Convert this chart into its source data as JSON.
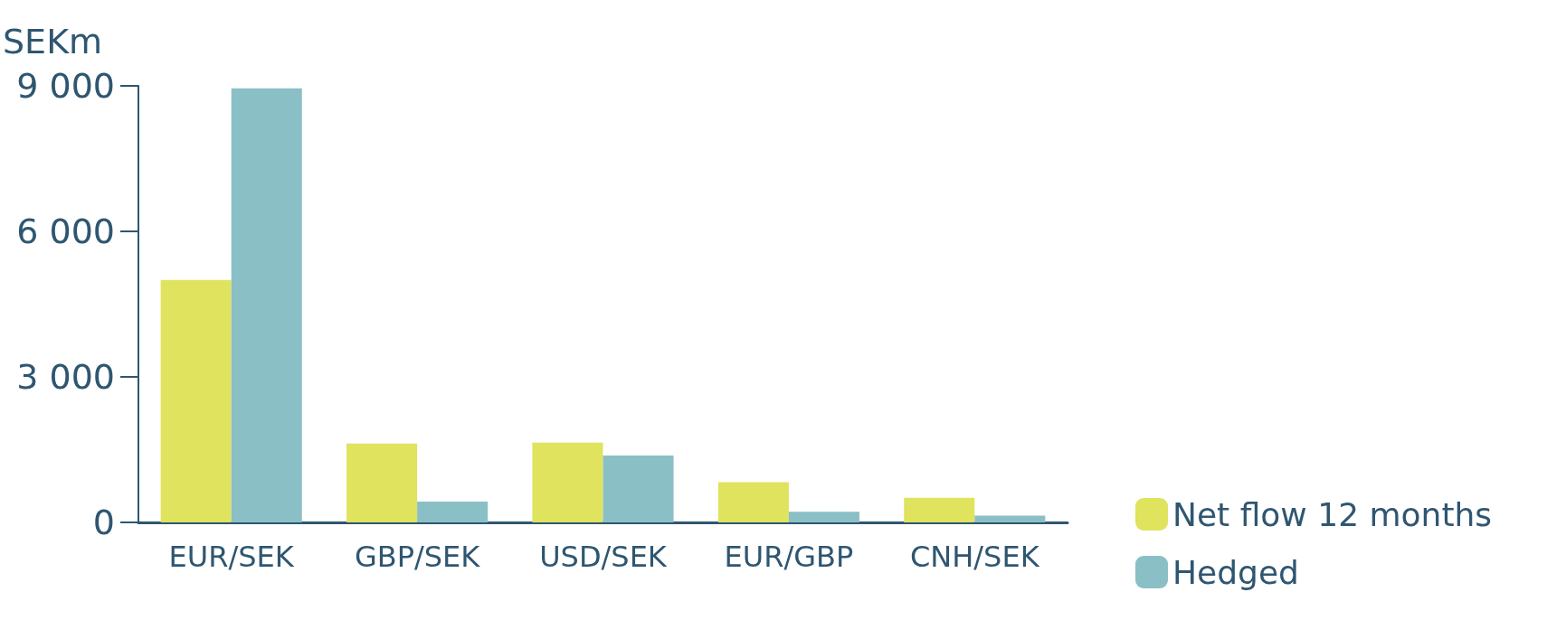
{
  "chart_data": {
    "type": "bar",
    "ylabel": "SEKm",
    "categories": [
      "EUR/SEK",
      "GBP/SEK",
      "USD/SEK",
      "EUR/GBP",
      "CNH/SEK"
    ],
    "series": [
      {
        "name": "Net flow 12 months",
        "color": "#dfe35e",
        "values": [
          5000,
          1625,
          1645,
          830,
          510
        ]
      },
      {
        "name": "Hedged",
        "color": "#8bbfc6",
        "values": [
          8950,
          430,
          1380,
          220,
          140
        ]
      }
    ],
    "ylim": [
      0,
      9000
    ],
    "yticks": [
      0,
      {
        "value": 3000,
        "label": "3 000"
      },
      {
        "value": 6000,
        "label": "6 000"
      },
      {
        "value": 9000,
        "label": "9 000"
      }
    ],
    "grid": false,
    "legend": "bottom right"
  }
}
